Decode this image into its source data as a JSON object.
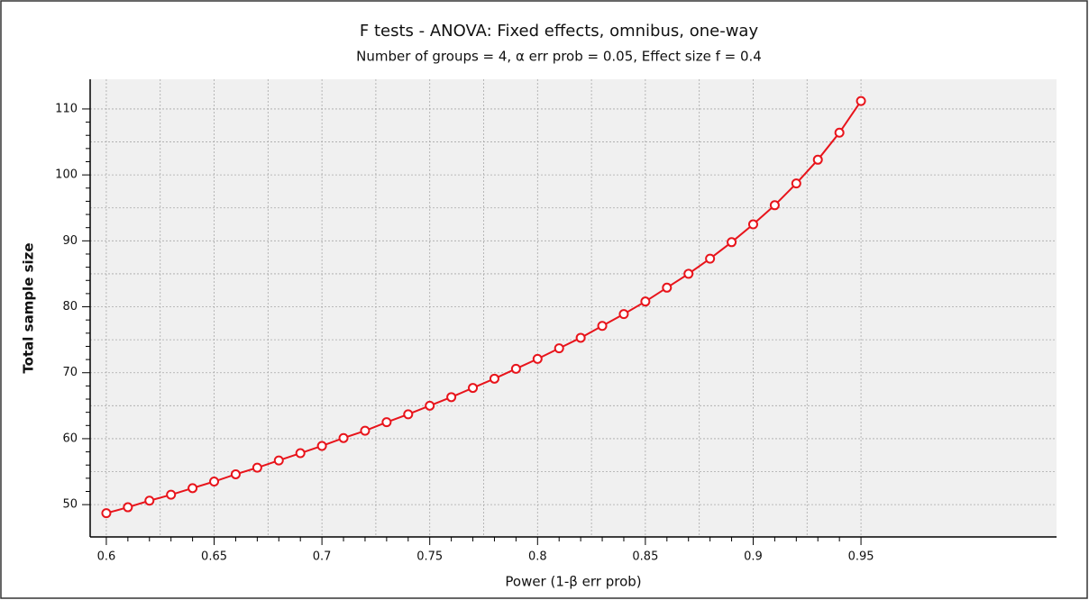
{
  "chart_data": {
    "type": "line",
    "title": "F tests - ANOVA: Fixed effects, omnibus, one-way",
    "subtitle": "Number of groups = 4, α err prob = 0.05, Effect size f = 0.4",
    "x_label": "Power (1-β err prob)",
    "y_label": "Total sample size",
    "x": [
      0.6,
      0.61,
      0.62,
      0.63,
      0.64,
      0.65,
      0.66,
      0.67,
      0.68,
      0.69,
      0.7,
      0.71,
      0.72,
      0.73,
      0.74,
      0.75,
      0.76,
      0.77,
      0.78,
      0.79,
      0.8,
      0.81,
      0.82,
      0.83,
      0.84,
      0.85,
      0.86,
      0.87,
      0.88,
      0.89,
      0.9,
      0.91,
      0.92,
      0.93,
      0.94,
      0.95
    ],
    "values": [
      48.7,
      49.6,
      50.6,
      51.5,
      52.5,
      53.5,
      54.6,
      55.6,
      56.7,
      57.8,
      58.9,
      60.1,
      61.2,
      62.5,
      63.7,
      65.0,
      66.3,
      67.7,
      69.1,
      70.6,
      72.1,
      73.7,
      75.3,
      77.1,
      78.9,
      80.8,
      82.9,
      85.0,
      87.3,
      89.8,
      92.5,
      95.4,
      98.7,
      102.3,
      106.4,
      111.2
    ],
    "color": "#e8141b",
    "xlim": [
      0.5925,
      1.0407
    ],
    "ylim": [
      45.1,
      114.5
    ],
    "xticks": [
      0.6,
      0.65,
      0.7,
      0.75,
      0.8,
      0.85,
      0.9,
      0.95
    ],
    "yticks": [
      50,
      60,
      70,
      80,
      90,
      100,
      110
    ],
    "grid": true
  }
}
